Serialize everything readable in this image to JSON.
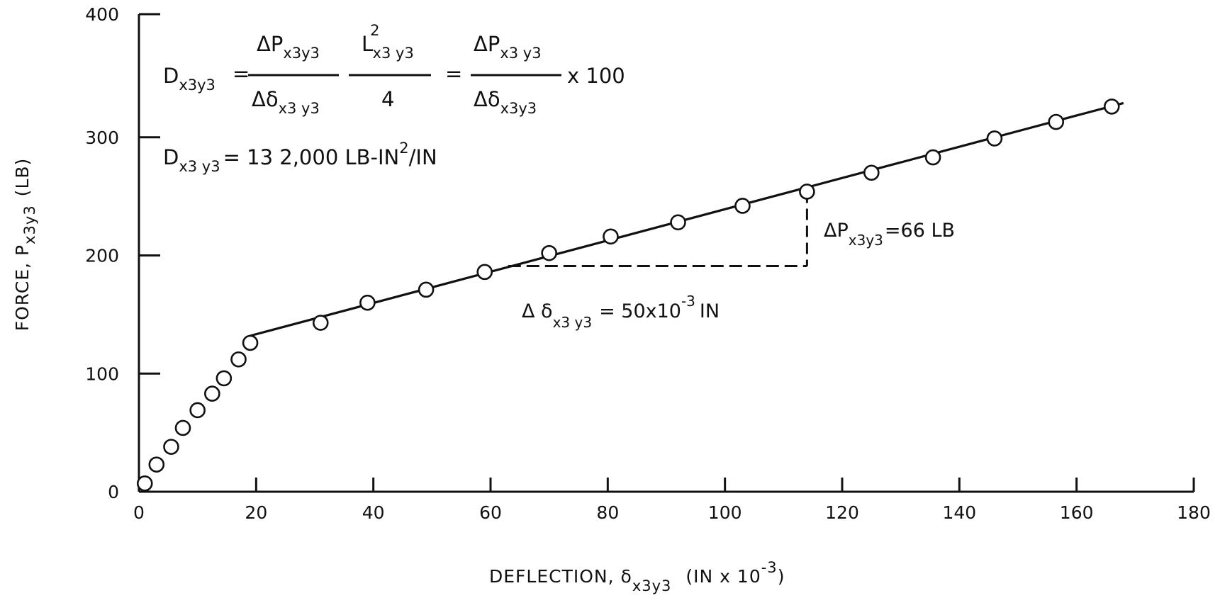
{
  "chart_data": {
    "type": "line",
    "title": "",
    "xlabel": {
      "text": "DEFLECTION, δ",
      "sub": "x3y3",
      "unit": "(IN x 10",
      "unit_sup": "-3",
      "unit_end": ")"
    },
    "ylabel": {
      "text": "FORCE, P",
      "sub": "x3y3",
      "unit": "(LB)"
    },
    "xlim": [
      0,
      180
    ],
    "ylim": [
      0,
      400
    ],
    "xticks": [
      0,
      20,
      40,
      60,
      80,
      100,
      120,
      140,
      160,
      180
    ],
    "yticks": [
      0,
      100,
      200,
      300,
      400
    ],
    "xtick_labels": [
      "0",
      "20",
      "40",
      "60",
      "80",
      "100",
      "120",
      "140",
      "160",
      "180"
    ],
    "ytick_labels": [
      "0",
      "100",
      "200",
      "300",
      "400"
    ],
    "grid": false,
    "series": [
      {
        "marker": "open-circle",
        "x": [
          1,
          3,
          5.5,
          7.5,
          10,
          12.5,
          14.5,
          17,
          19,
          31,
          39,
          49,
          59,
          70,
          80.5,
          92,
          103,
          114,
          125,
          135.5,
          146,
          156.5,
          166
        ],
        "y": [
          7,
          23,
          38,
          54,
          69,
          83,
          96,
          112,
          126,
          143,
          160,
          171,
          186,
          202,
          216,
          228,
          242,
          254,
          270,
          283,
          299,
          313,
          326
        ]
      }
    ],
    "fit_line": {
      "x": [
        19,
        168
      ],
      "y": [
        132,
        329
      ]
    },
    "slope_triangle": {
      "x_start": 63,
      "x_end": 114,
      "y_base": 191,
      "y_top": 254
    },
    "annotations": {
      "formula": {
        "lhs": "D",
        "lhs_sub": "x3y3",
        "eq": "=",
        "num1": "ΔP",
        "num1_sub": "x3y3",
        "den1": "Δδ",
        "den1_sub": "x3 y3",
        "num2": "L",
        "num2_sup": "2",
        "num2_sub": "x3 y3",
        "den2": "4",
        "eq2": "=",
        "num3": "ΔP",
        "num3_sub": "x3 y3",
        "den3": "Δδ",
        "den3_sub": "x3y3",
        "mult": "x 100"
      },
      "result": {
        "lhs": "D",
        "lhs_sub": "x3 y3",
        "value": "= 13 2,000 LB-IN",
        "sup": "2",
        "unit_end": "/IN"
      },
      "delta_p": {
        "text": "ΔP",
        "sub": "x3y3",
        "value": "=66 LB"
      },
      "delta_delta": {
        "text": "Δ δ",
        "sub": "x3 y3",
        "value": "= 50x10",
        "sup": "-3",
        "unit": "IN"
      }
    }
  }
}
